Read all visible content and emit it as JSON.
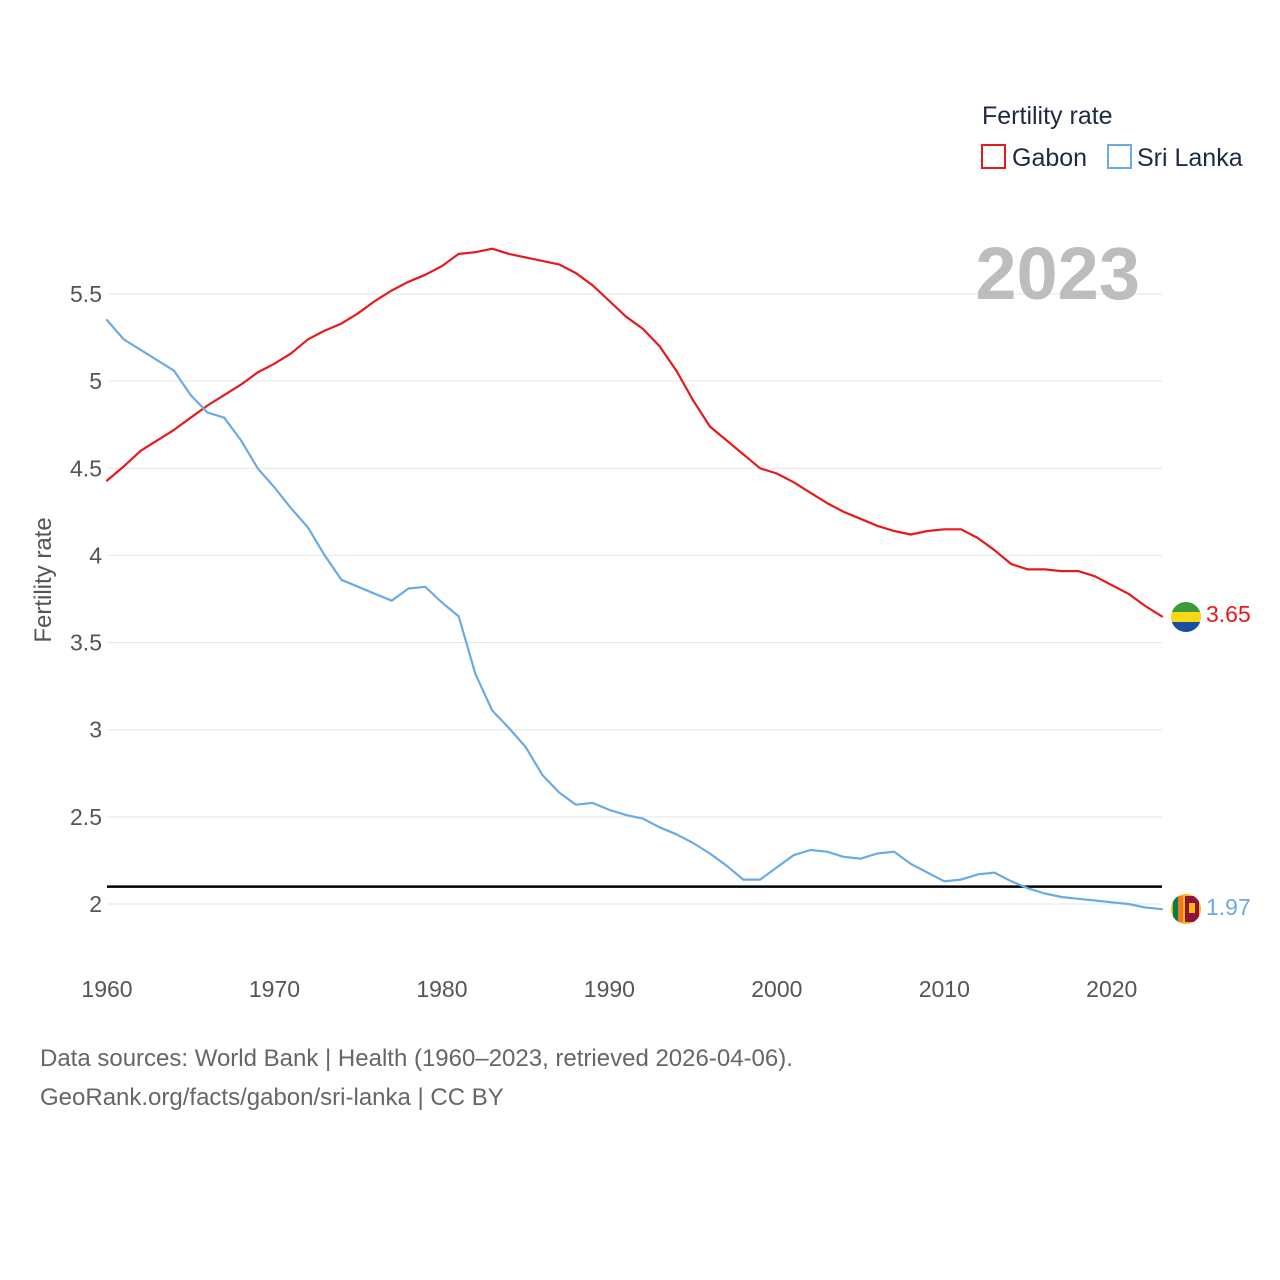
{
  "chart_data": {
    "type": "line",
    "ylabel": "Fertility rate",
    "ylim": [
      1.8,
      5.9
    ],
    "xlim": [
      1960,
      2023
    ],
    "yticks": [
      "2",
      "2.5",
      "3",
      "3.5",
      "4",
      "4.5",
      "5",
      "5.5"
    ],
    "ytick_values": [
      2,
      2.5,
      3,
      3.5,
      4,
      4.5,
      5,
      5.5
    ],
    "xticks": [
      "1960",
      "1970",
      "1980",
      "1990",
      "2000",
      "2010",
      "2020"
    ],
    "xtick_values": [
      1960,
      1970,
      1980,
      1990,
      2000,
      2010,
      2020
    ],
    "reference_line": 2.1,
    "year_label": "2023",
    "legend": {
      "title": "Fertility rate",
      "placement": "top-right"
    },
    "series": [
      {
        "name": "Gabon",
        "color": "#e8191c",
        "end_label": "3.65",
        "x": [
          1960,
          1961,
          1962,
          1963,
          1964,
          1965,
          1966,
          1967,
          1968,
          1969,
          1970,
          1971,
          1972,
          1973,
          1974,
          1975,
          1976,
          1977,
          1978,
          1979,
          1980,
          1981,
          1982,
          1983,
          1984,
          1985,
          1986,
          1987,
          1988,
          1989,
          1990,
          1991,
          1992,
          1993,
          1994,
          1995,
          1996,
          1997,
          1998,
          1999,
          2000,
          2001,
          2002,
          2003,
          2004,
          2005,
          2006,
          2007,
          2008,
          2009,
          2010,
          2011,
          2012,
          2013,
          2014,
          2015,
          2016,
          2017,
          2018,
          2019,
          2020,
          2021,
          2022,
          2023
        ],
        "values": [
          4.43,
          4.51,
          4.6,
          4.66,
          4.72,
          4.79,
          4.86,
          4.92,
          4.98,
          5.05,
          5.1,
          5.16,
          5.24,
          5.29,
          5.33,
          5.39,
          5.46,
          5.52,
          5.57,
          5.61,
          5.66,
          5.73,
          5.74,
          5.76,
          5.73,
          5.71,
          5.69,
          5.67,
          5.62,
          5.55,
          5.46,
          5.37,
          5.3,
          5.2,
          5.06,
          4.89,
          4.74,
          4.66,
          4.58,
          4.5,
          4.47,
          4.42,
          4.36,
          4.3,
          4.25,
          4.21,
          4.17,
          4.14,
          4.12,
          4.14,
          4.15,
          4.15,
          4.1,
          4.03,
          3.95,
          3.92,
          3.92,
          3.91,
          3.91,
          3.88,
          3.83,
          3.78,
          3.71,
          3.65
        ]
      },
      {
        "name": "Sri Lanka",
        "color": "#6aabe6",
        "end_label": "1.97",
        "x": [
          1960,
          1961,
          1962,
          1963,
          1964,
          1965,
          1966,
          1967,
          1968,
          1969,
          1970,
          1971,
          1972,
          1973,
          1974,
          1975,
          1976,
          1977,
          1978,
          1979,
          1980,
          1981,
          1982,
          1983,
          1984,
          1985,
          1986,
          1987,
          1988,
          1989,
          1990,
          1991,
          1992,
          1993,
          1994,
          1995,
          1996,
          1997,
          1998,
          1999,
          2000,
          2001,
          2002,
          2003,
          2004,
          2005,
          2006,
          2007,
          2008,
          2009,
          2010,
          2011,
          2012,
          2013,
          2014,
          2015,
          2016,
          2017,
          2018,
          2019,
          2020,
          2021,
          2022,
          2023
        ],
        "values": [
          5.35,
          5.24,
          5.18,
          5.12,
          5.06,
          4.92,
          4.82,
          4.79,
          4.66,
          4.5,
          4.39,
          4.27,
          4.16,
          4.0,
          3.86,
          3.82,
          3.78,
          3.74,
          3.81,
          3.82,
          3.73,
          3.65,
          3.32,
          3.11,
          3.01,
          2.9,
          2.74,
          2.64,
          2.57,
          2.58,
          2.54,
          2.51,
          2.49,
          2.44,
          2.4,
          2.35,
          2.29,
          2.22,
          2.14,
          2.14,
          2.21,
          2.28,
          2.31,
          2.3,
          2.27,
          2.26,
          2.29,
          2.3,
          2.23,
          2.18,
          2.13,
          2.14,
          2.17,
          2.18,
          2.13,
          2.09,
          2.06,
          2.04,
          2.03,
          2.02,
          2.01,
          2.0,
          1.98,
          1.97
        ]
      }
    ]
  },
  "footer": {
    "line1": "Data sources: World Bank | Health (1960–2023, retrieved 2026-04-06).",
    "line2": "GeoRank.org/facts/gabon/sri-lanka | CC BY"
  }
}
